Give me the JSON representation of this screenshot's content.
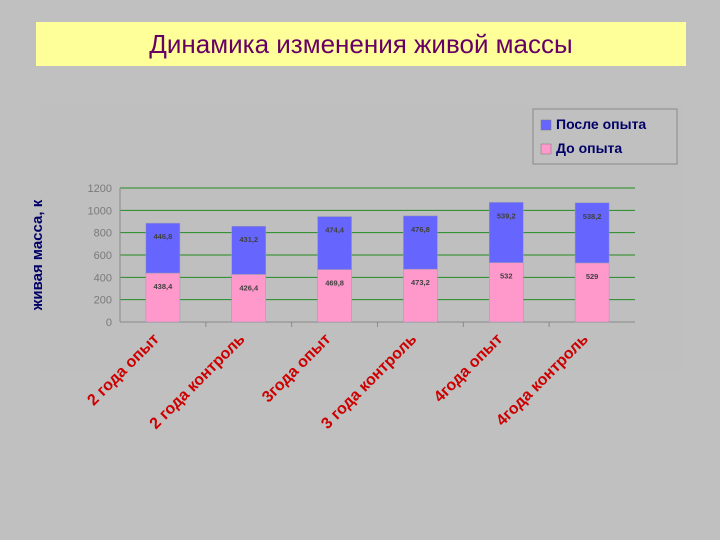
{
  "slide": {
    "title": "Динамика изменения живой массы"
  },
  "chart_data": {
    "type": "bar",
    "stacked": true,
    "categories": [
      "2 года опыт",
      "2 года контроль",
      "3года опыт",
      "3 года контроль",
      "4года опыт",
      "4года контроль"
    ],
    "series": [
      {
        "name": "До опыта",
        "values": [
          438.4,
          426.4,
          469.8,
          473.2,
          532,
          529
        ],
        "labels": [
          "438,4",
          "426,4",
          "469,8",
          "473,2",
          "532",
          "529"
        ],
        "color": "#ff99cc"
      },
      {
        "name": "После опыта",
        "values": [
          446.8,
          431.2,
          474.4,
          476.8,
          539.2,
          538.2
        ],
        "labels": [
          "446,8",
          "431,2",
          "474,4",
          "476,8",
          "539,2",
          "538,2"
        ],
        "color": "#6666ff"
      }
    ],
    "ylabel": "живая масса, кг",
    "ylabel_visible": "живая масса, к",
    "ylim": [
      0,
      1200
    ],
    "yticks": [
      0,
      200,
      400,
      600,
      800,
      1000,
      1200
    ],
    "grid": true,
    "legend_position": "top-right",
    "category_label_color": "#cc0000"
  }
}
